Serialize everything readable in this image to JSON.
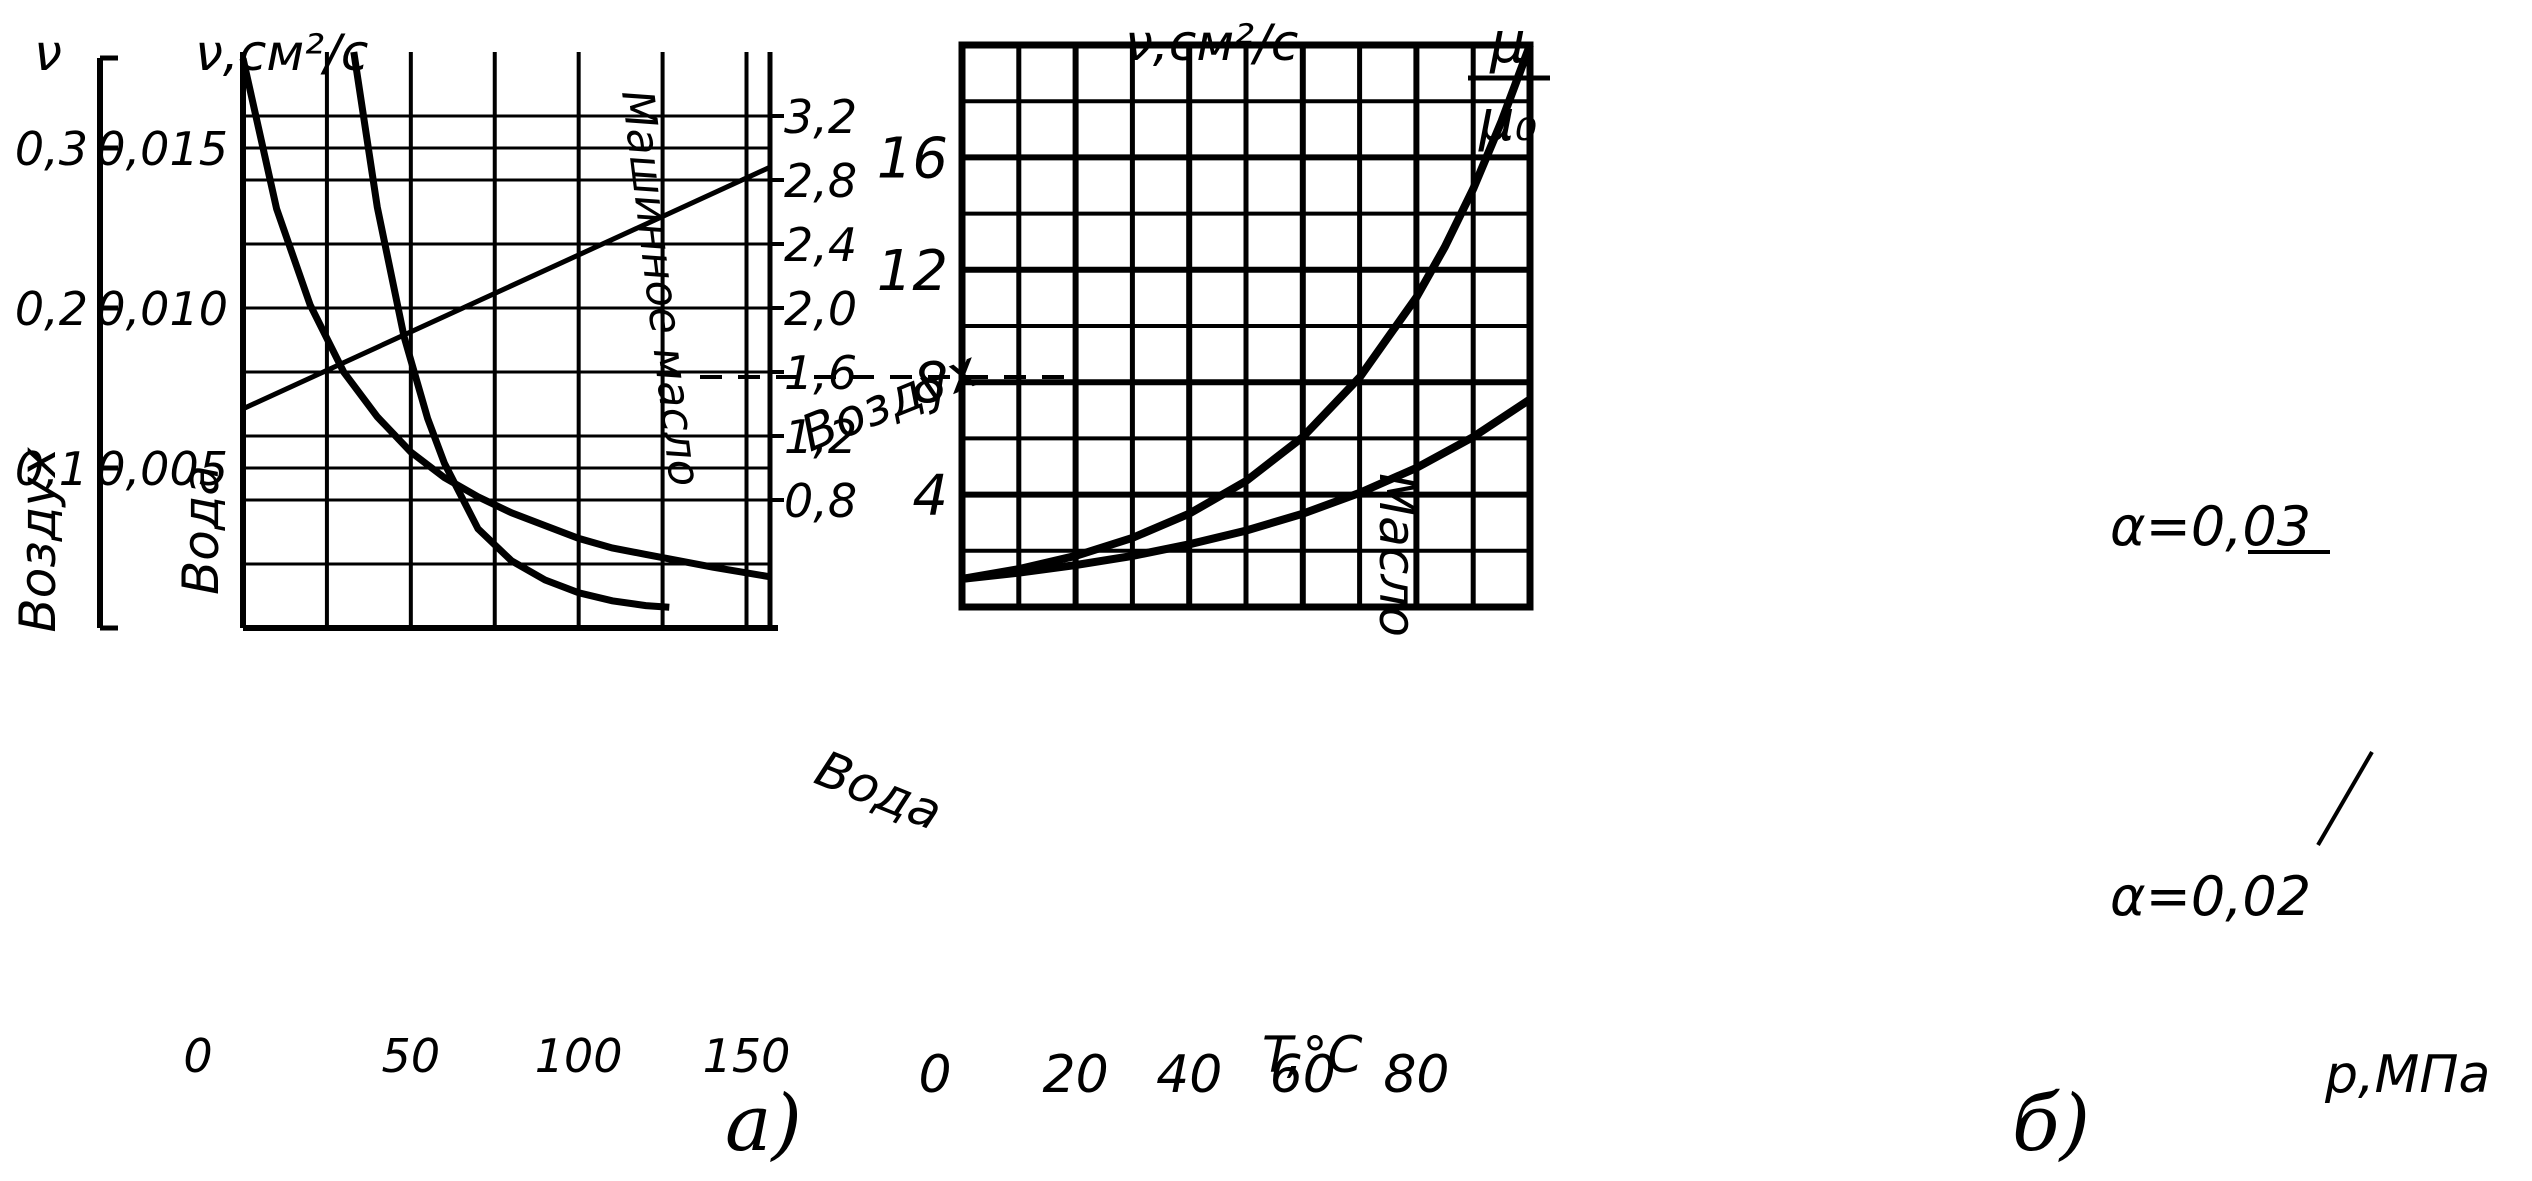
{
  "chart_data": [
    {
      "type": "line",
      "caption": "а)",
      "xlim": [
        0,
        157
      ],
      "grid": true,
      "x_axis": {
        "label": "T,°C",
        "ticks": [
          0,
          50,
          100,
          150
        ],
        "tick_labels": [
          "0",
          "50",
          "100",
          "150"
        ]
      },
      "axes": {
        "air": {
          "title": "Воздух",
          "symbol": "ν",
          "ylim": [
            0,
            0.36
          ],
          "ticks": [
            0.1,
            0.2,
            0.3
          ],
          "tick_labels": [
            "0,1",
            "0,2",
            "0,3"
          ]
        },
        "water": {
          "title": "Вода",
          "unit": "ν,см²/с",
          "ylim": [
            0,
            0.018
          ],
          "ticks": [
            0.005,
            0.01,
            0.015
          ],
          "tick_labels": [
            "0,005",
            "0,010",
            "0,015"
          ]
        },
        "oil": {
          "title": "Масло",
          "unit": "ν,см²/с",
          "ylim": [
            0,
            3.6
          ],
          "ticks": [
            0.8,
            1.2,
            1.6,
            2.0,
            2.4,
            2.8,
            3.2
          ],
          "tick_labels": [
            "0,8",
            "1,2",
            "1,6",
            "2,0",
            "2,4",
            "2,8",
            "3,2"
          ]
        }
      },
      "series": [
        {
          "name": "Воздух",
          "axis": "air",
          "x": [
            0,
            157
          ],
          "y": [
            0.137,
            0.288
          ]
        },
        {
          "name": "Вода",
          "axis": "water",
          "x": [
            0,
            10,
            20,
            30,
            40,
            50,
            60,
            70,
            80,
            90,
            100,
            110,
            120,
            130,
            140,
            157
          ],
          "y": [
            0.0178,
            0.0131,
            0.0101,
            0.008,
            0.0066,
            0.0055,
            0.0047,
            0.0041,
            0.0036,
            0.0032,
            0.0028,
            0.0025,
            0.0023,
            0.0021,
            0.0019,
            0.0016
          ]
        },
        {
          "name": "Машинное масло",
          "axis": "oil",
          "x": [
            33,
            40,
            48,
            55,
            60,
            70,
            80,
            90,
            100,
            110,
            120,
            127
          ],
          "y": [
            3.6,
            2.63,
            1.82,
            1.31,
            1.03,
            0.62,
            0.42,
            0.3,
            0.22,
            0.17,
            0.14,
            0.13
          ]
        }
      ]
    },
    {
      "type": "line",
      "caption": "б)",
      "xlim": [
        0,
        100
      ],
      "ylim": [
        0,
        20
      ],
      "grid": true,
      "x_axis": {
        "label": "р,МПа",
        "ticks": [
          0,
          20,
          40,
          60,
          80
        ],
        "tick_labels": [
          "0",
          "20",
          "40",
          "60",
          "80"
        ]
      },
      "y_axis": {
        "label_top": "μ",
        "label_bottom": "μ₀",
        "ticks": [
          4,
          8,
          12,
          16
        ],
        "tick_labels": [
          "4",
          "8",
          "12",
          "16"
        ]
      },
      "series": [
        {
          "name": "α=0,03",
          "x": [
            0,
            10,
            20,
            30,
            40,
            50,
            60,
            70,
            80,
            85,
            90,
            95,
            100
          ],
          "y": [
            1.0,
            1.35,
            1.82,
            2.46,
            3.32,
            4.48,
            6.05,
            8.17,
            11.02,
            12.81,
            14.88,
            17.29,
            20.09
          ]
        },
        {
          "name": "α=0,02",
          "x": [
            0,
            10,
            20,
            30,
            40,
            50,
            60,
            70,
            80,
            90,
            100
          ],
          "y": [
            1.0,
            1.22,
            1.49,
            1.82,
            2.23,
            2.72,
            3.32,
            4.06,
            4.95,
            6.05,
            7.39
          ]
        }
      ]
    }
  ]
}
